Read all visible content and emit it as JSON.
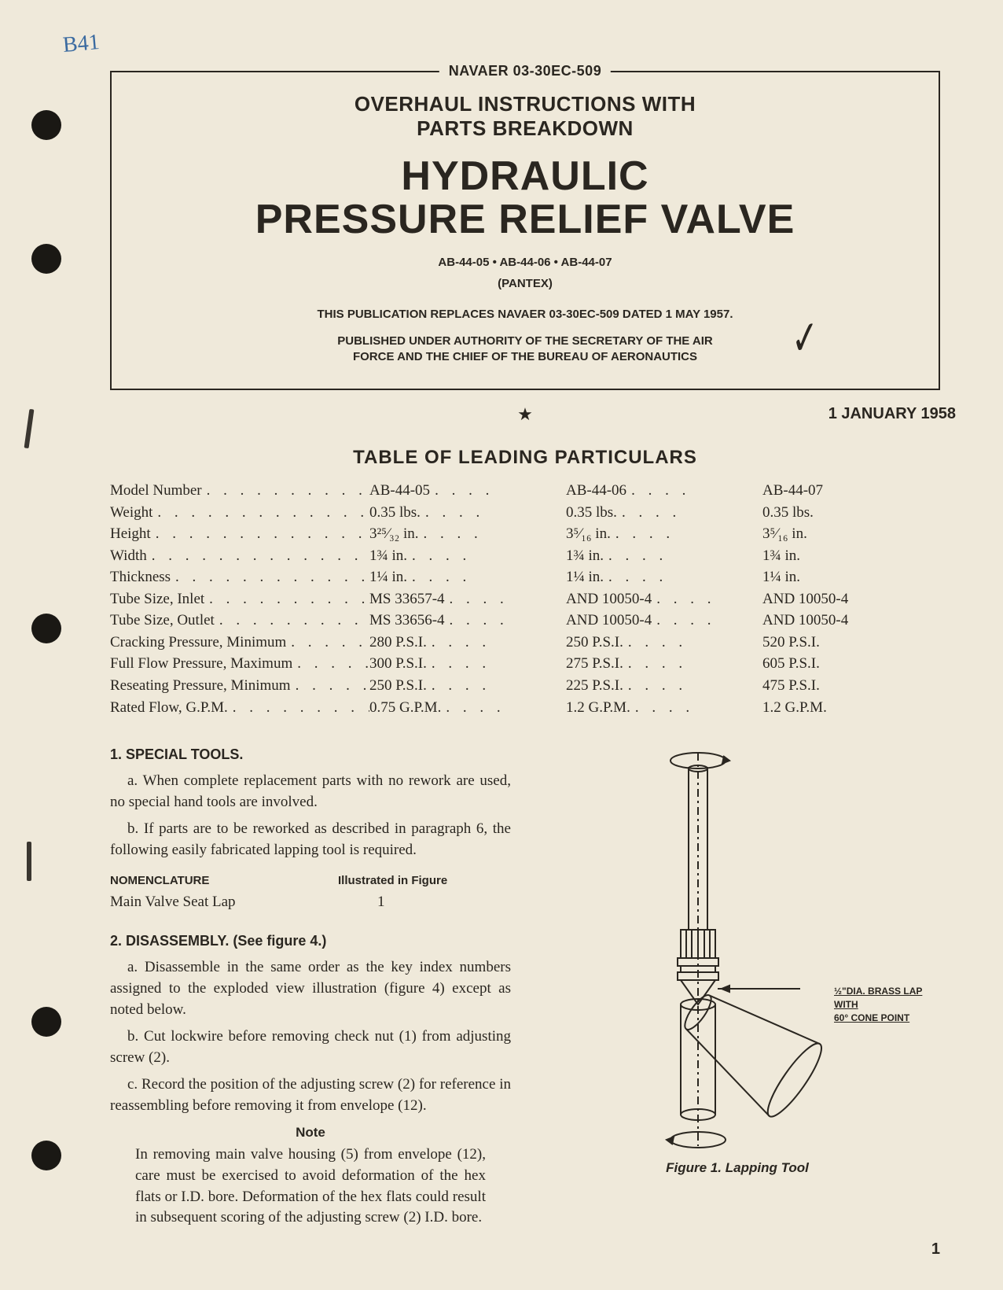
{
  "handwritten_note": "B41",
  "header": {
    "doc_number": "NAVAER 03-30EC-509",
    "subtitle_line1": "OVERHAUL INSTRUCTIONS WITH",
    "subtitle_line2": "PARTS BREAKDOWN",
    "title_line1": "HYDRAULIC",
    "title_line2": "PRESSURE RELIEF VALVE",
    "models": "AB-44-05 • AB-44-06 • AB-44-07",
    "manufacturer": "(PANTEX)",
    "replaces": "THIS PUBLICATION REPLACES NAVAER 03-30EC-509 DATED 1 MAY 1957.",
    "authority_line1": "PUBLISHED UNDER AUTHORITY OF THE SECRETARY OF THE AIR",
    "authority_line2": "FORCE AND THE CHIEF OF THE BUREAU OF AERONAUTICS",
    "date": "1 JANUARY 1958"
  },
  "table": {
    "title": "TABLE OF LEADING PARTICULARS",
    "rows": [
      {
        "label": "Model Number",
        "c1": "AB-44-05",
        "c2": "AB-44-06",
        "c3": "AB-44-07"
      },
      {
        "label": "Weight",
        "c1": "0.35 lbs.",
        "c2": "0.35 lbs.",
        "c3": "0.35 lbs."
      },
      {
        "label": "Height",
        "c1": "3²⁵⁄₃₂ in.",
        "c2": "3⁵⁄₁₆ in.",
        "c3": "3⁵⁄₁₆ in."
      },
      {
        "label": "Width",
        "c1": "1¾ in.",
        "c2": "1¾ in.",
        "c3": "1¾ in."
      },
      {
        "label": "Thickness",
        "c1": "1¼ in.",
        "c2": "1¼ in.",
        "c3": "1¼ in."
      },
      {
        "label": "Tube Size, Inlet",
        "c1": "MS 33657-4",
        "c2": "AND 10050-4",
        "c3": "AND 10050-4"
      },
      {
        "label": "Tube Size, Outlet",
        "c1": "MS 33656-4",
        "c2": "AND 10050-4",
        "c3": "AND 10050-4"
      },
      {
        "label": "Cracking Pressure, Minimum",
        "c1": "280 P.S.I.",
        "c2": "250 P.S.I.",
        "c3": "520 P.S.I."
      },
      {
        "label": "Full Flow Pressure, Maximum",
        "c1": "300 P.S.I.",
        "c2": "275 P.S.I.",
        "c3": "605 P.S.I."
      },
      {
        "label": "Reseating Pressure, Minimum",
        "c1": "250 P.S.I.",
        "c2": "225 P.S.I.",
        "c3": "475 P.S.I."
      },
      {
        "label": "Rated Flow, G.P.M.",
        "c1": "0.75 G.P.M.",
        "c2": "1.2 G.P.M.",
        "c3": "1.2 G.P.M."
      }
    ]
  },
  "section1": {
    "heading": "1.  SPECIAL TOOLS.",
    "para_a": "a. When complete replacement parts with no rework are used, no special hand tools are involved.",
    "para_b": "b. If parts are to be reworked as described in paragraph 6, the following easily fabricated lapping tool is required.",
    "nomen_head_l": "NOMENCLATURE",
    "nomen_head_r": "Illustrated in Figure",
    "nomen_l": "Main Valve Seat Lap",
    "nomen_r": "1"
  },
  "section2": {
    "heading": "2.  DISASSEMBLY.  (See figure 4.)",
    "para_a": "a. Disassemble in the same order as the key index numbers assigned to the exploded view illustration (figure 4) except as noted below.",
    "para_b": "b. Cut lockwire before removing check nut (1) from adjusting screw (2).",
    "para_c": "c. Record the position of the adjusting screw (2) for reference in reassembling before removing it from envelope (12).",
    "note_head": "Note",
    "note_body": "In removing main valve housing (5) from envelope (12), care must be exercised to avoid deformation of the hex flats or I.D. bore. Deformation of the hex flats could result in subsequent scoring of the adjusting screw (2) I.D. bore."
  },
  "figure": {
    "label_line1": "½\"DIA. BRASS LAP WITH",
    "label_line2": "60° CONE POINT",
    "caption": "Figure 1.  Lapping Tool"
  },
  "page_number": "1",
  "colors": {
    "page_bg": "#efe9da",
    "text": "#2a2620",
    "handwritten": "#3a6aa0",
    "punch": "#1a1814"
  }
}
